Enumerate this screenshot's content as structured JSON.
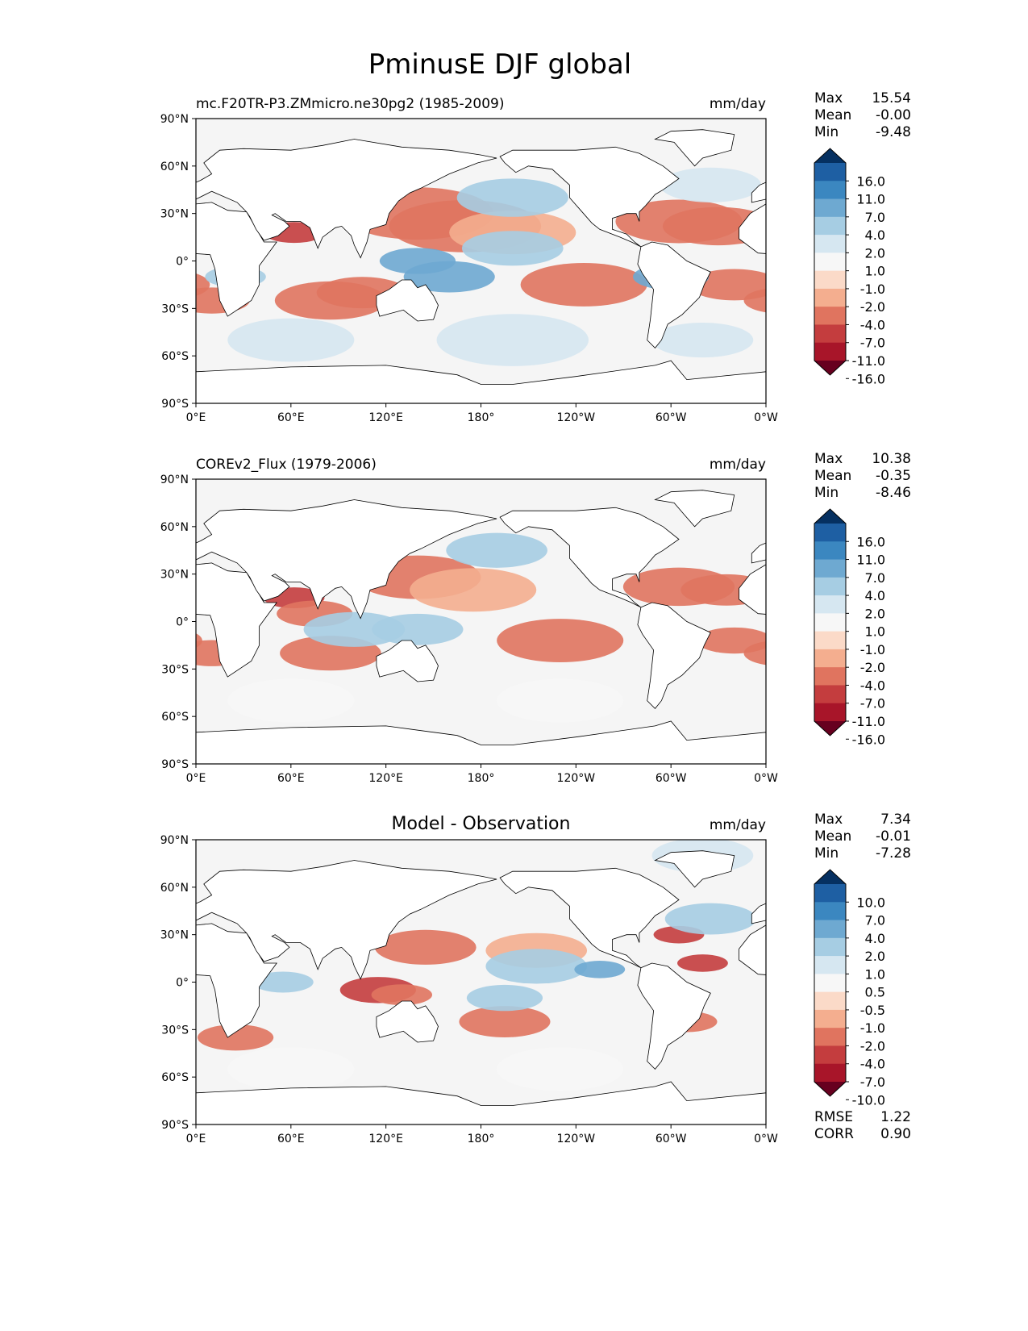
{
  "figure_title": "PminusE DJF global",
  "axes": {
    "lat_ticks": [
      "90°N",
      "60°N",
      "30°N",
      "0°",
      "30°S",
      "60°S",
      "90°S"
    ],
    "lon_ticks": [
      "0°E",
      "60°E",
      "120°E",
      "180°",
      "120°W",
      "60°W",
      "0°W"
    ]
  },
  "colors": {
    "diverging": [
      "#053061",
      "#1e5fa3",
      "#3b87c0",
      "#6ea9d1",
      "#a6cde3",
      "#d6e7f1",
      "#f7f7f7",
      "#fbdac8",
      "#f4ae8f",
      "#e0745f",
      "#c43d3e",
      "#a81529",
      "#67001f"
    ],
    "land": "#ffffff",
    "background": "#f5f5f5"
  },
  "chart_data": [
    {
      "type": "heatmap",
      "title": "mc.F20TR-P3.ZMmicro.ne30pg2 (1985-2009)",
      "units": "mm/day",
      "stats": {
        "max_label": "Max",
        "max": "15.54",
        "mean_label": "Mean",
        "mean": "-0.00",
        "min_label": "Min",
        "min": "-9.48"
      },
      "colorbar_levels": [
        "16.0",
        "11.0",
        "7.0",
        "4.0",
        "2.0",
        "1.0",
        "-1.0",
        "-2.0",
        "-4.0",
        "-7.0",
        "-11.0",
        "-16.0"
      ],
      "xlim": [
        0,
        360
      ],
      "ylim": [
        -90,
        90
      ],
      "features": [
        {
          "lon": 140,
          "lat": 30,
          "value": -4.0,
          "r": 30
        },
        {
          "lon": 170,
          "lat": 22,
          "value": -4.0,
          "r": 30
        },
        {
          "lon": 200,
          "lat": 18,
          "value": -3.0,
          "r": 25
        },
        {
          "lon": 305,
          "lat": 25,
          "value": -4.0,
          "r": 25
        },
        {
          "lon": 330,
          "lat": 22,
          "value": -4.0,
          "r": 22
        },
        {
          "lon": 62,
          "lat": 18,
          "value": -7.0,
          "r": 12
        },
        {
          "lon": 85,
          "lat": -25,
          "value": -4.0,
          "r": 22
        },
        {
          "lon": 105,
          "lat": -20,
          "value": -4.0,
          "r": 18
        },
        {
          "lon": 245,
          "lat": -15,
          "value": -4.0,
          "r": 25
        },
        {
          "lon": 340,
          "lat": -15,
          "value": -4.0,
          "r": 18
        },
        {
          "lon": 10,
          "lat": -25,
          "value": -4.0,
          "r": 15
        },
        {
          "lon": 160,
          "lat": -10,
          "value": 7.0,
          "r": 18
        },
        {
          "lon": 140,
          "lat": 0,
          "value": 7.0,
          "r": 15
        },
        {
          "lon": 200,
          "lat": 8,
          "value": 4.0,
          "r": 20
        },
        {
          "lon": 25,
          "lat": -10,
          "value": 4.0,
          "r": 12
        },
        {
          "lon": 300,
          "lat": -10,
          "value": 7.0,
          "r": 15
        },
        {
          "lon": 200,
          "lat": 40,
          "value": 4.0,
          "r": 22
        },
        {
          "lon": 325,
          "lat": 48,
          "value": 2.0,
          "r": 20
        },
        {
          "lon": 60,
          "lat": -50,
          "value": 2.0,
          "r": 25
        },
        {
          "lon": 200,
          "lat": -50,
          "value": 2.0,
          "r": 30
        },
        {
          "lon": 320,
          "lat": -50,
          "value": 2.0,
          "r": 20
        }
      ]
    },
    {
      "type": "heatmap",
      "title": "COREv2_Flux (1979-2006)",
      "units": "mm/day",
      "stats": {
        "max_label": "Max",
        "max": "10.38",
        "mean_label": "Mean",
        "mean": "-0.35",
        "min_label": "Min",
        "min": "-8.46"
      },
      "colorbar_levels": [
        "16.0",
        "11.0",
        "7.0",
        "4.0",
        "2.0",
        "1.0",
        "-1.0",
        "-2.0",
        "-4.0",
        "-7.0",
        "-11.0",
        "-16.0"
      ],
      "xlim": [
        0,
        360
      ],
      "ylim": [
        -90,
        90
      ],
      "features": [
        {
          "lon": 140,
          "lat": 28,
          "value": -4.0,
          "r": 25
        },
        {
          "lon": 175,
          "lat": 20,
          "value": -2.0,
          "r": 25
        },
        {
          "lon": 62,
          "lat": 15,
          "value": -7.0,
          "r": 12
        },
        {
          "lon": 75,
          "lat": 5,
          "value": -4.0,
          "r": 15
        },
        {
          "lon": 305,
          "lat": 22,
          "value": -4.0,
          "r": 22
        },
        {
          "lon": 335,
          "lat": 20,
          "value": -4.0,
          "r": 18
        },
        {
          "lon": 85,
          "lat": -20,
          "value": -4.0,
          "r": 20
        },
        {
          "lon": 230,
          "lat": -12,
          "value": -4.0,
          "r": 25
        },
        {
          "lon": 340,
          "lat": -12,
          "value": -4.0,
          "r": 15
        },
        {
          "lon": 10,
          "lat": -20,
          "value": -4.0,
          "r": 15
        },
        {
          "lon": 100,
          "lat": -5,
          "value": 4.0,
          "r": 20
        },
        {
          "lon": 140,
          "lat": -5,
          "value": 4.0,
          "r": 18
        },
        {
          "lon": 190,
          "lat": 45,
          "value": 4.0,
          "r": 20
        },
        {
          "lon": 60,
          "lat": -50,
          "value": 1.0,
          "r": 25
        },
        {
          "lon": 230,
          "lat": -50,
          "value": 1.0,
          "r": 25
        }
      ]
    },
    {
      "type": "heatmap",
      "title": "Model - Observation",
      "units": "mm/day",
      "stats": {
        "max_label": "Max",
        "max": "7.34",
        "mean_label": "Mean",
        "mean": "-0.01",
        "min_label": "Min",
        "min": "-7.28"
      },
      "extra_stats": {
        "rmse_label": "RMSE",
        "rmse": "1.22",
        "corr_label": "CORR",
        "corr": "0.90"
      },
      "colorbar_levels": [
        "10.0",
        "7.0",
        "4.0",
        "2.0",
        "1.0",
        "0.5",
        "-0.5",
        "-1.0",
        "-2.0",
        "-4.0",
        "-7.0",
        "-10.0"
      ],
      "xlim": [
        0,
        360
      ],
      "ylim": [
        -90,
        90
      ],
      "features": [
        {
          "lon": 115,
          "lat": -5,
          "value": -4.0,
          "r": 15
        },
        {
          "lon": 130,
          "lat": -8,
          "value": -2.0,
          "r": 12
        },
        {
          "lon": 145,
          "lat": 22,
          "value": -2.0,
          "r": 20
        },
        {
          "lon": 215,
          "lat": 20,
          "value": -1.0,
          "r": 20
        },
        {
          "lon": 195,
          "lat": -25,
          "value": -2.0,
          "r": 18
        },
        {
          "lon": 25,
          "lat": -35,
          "value": -2.0,
          "r": 15
        },
        {
          "lon": 310,
          "lat": -25,
          "value": -2.0,
          "r": 12
        },
        {
          "lon": 320,
          "lat": 12,
          "value": -4.0,
          "r": 10
        },
        {
          "lon": 305,
          "lat": 30,
          "value": -4.0,
          "r": 10
        },
        {
          "lon": 55,
          "lat": 0,
          "value": 2.0,
          "r": 12
        },
        {
          "lon": 215,
          "lat": 10,
          "value": 2.0,
          "r": 20
        },
        {
          "lon": 195,
          "lat": -10,
          "value": 2.0,
          "r": 15
        },
        {
          "lon": 255,
          "lat": 8,
          "value": 4.0,
          "r": 10
        },
        {
          "lon": 325,
          "lat": 40,
          "value": 2.0,
          "r": 18
        },
        {
          "lon": 320,
          "lat": 80,
          "value": 1.0,
          "r": 20
        },
        {
          "lon": 60,
          "lat": -55,
          "value": 0.5,
          "r": 25
        },
        {
          "lon": 230,
          "lat": -55,
          "value": 0.5,
          "r": 25
        }
      ]
    }
  ]
}
